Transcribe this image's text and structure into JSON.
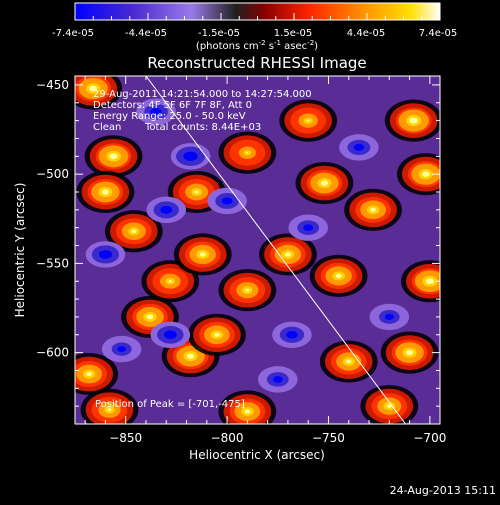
{
  "colorbar": {
    "tick_labels": [
      "-7.4e-05",
      "-4.4e-05",
      "-1.5e-05",
      "1.5e-05",
      "4.4e-05",
      "7.4e-05"
    ],
    "unit_prefix": "(photons cm",
    "unit_exp1": "-2",
    "unit_mid": " s",
    "unit_exp2": "-1",
    "unit_mid2": " asec",
    "unit_exp3": "-2",
    "unit_suffix": ")"
  },
  "chart_data": {
    "type": "heatmap",
    "title": "Reconstructed RHESSI Image",
    "xlabel": "Heliocentric X (arcsec)",
    "ylabel": "Heliocentric Y (arcsec)",
    "xlim": [
      -875,
      -695
    ],
    "ylim": [
      -640,
      -445
    ],
    "xticks": [
      -850,
      -800,
      -750,
      -700
    ],
    "yticks": [
      -450,
      -500,
      -550,
      -600
    ],
    "xtick_labels": [
      "−850",
      "−800",
      "−750",
      "−700"
    ],
    "ytick_labels": [
      "−450",
      "−500",
      "−550",
      "−600"
    ],
    "value_range": [
      -7.4e-05,
      7.4e-05
    ],
    "colormap": [
      "#0000ff",
      "#3a2acc",
      "#6a3ac8",
      "#8e66dc",
      "#000000",
      "#cc1a00",
      "#ff3300",
      "#ff9900",
      "#ffd300",
      "#ffffa0"
    ],
    "limb_line": {
      "x": [
        -840,
        -712
      ],
      "y": [
        -445,
        -640
      ]
    },
    "peak": {
      "x": -701,
      "y": -475
    },
    "blobs": [
      {
        "x": -866,
        "y": -452,
        "v": 7e-05
      },
      {
        "x": -856,
        "y": -490,
        "v": 7.2e-05
      },
      {
        "x": -860,
        "y": -510,
        "v": 6.8e-05
      },
      {
        "x": -846,
        "y": -532,
        "v": 5.5e-05
      },
      {
        "x": -838,
        "y": -580,
        "v": 6.5e-05
      },
      {
        "x": -828,
        "y": -560,
        "v": 4.5e-05
      },
      {
        "x": -818,
        "y": -602,
        "v": 6.8e-05
      },
      {
        "x": -868,
        "y": -612,
        "v": 6e-05
      },
      {
        "x": -815,
        "y": -510,
        "v": 5.2e-05
      },
      {
        "x": -812,
        "y": -545,
        "v": 6.2e-05
      },
      {
        "x": -805,
        "y": -590,
        "v": 6e-05
      },
      {
        "x": -790,
        "y": -565,
        "v": 5e-05
      },
      {
        "x": -770,
        "y": -545,
        "v": 6.2e-05
      },
      {
        "x": -760,
        "y": -470,
        "v": 4.2e-05
      },
      {
        "x": -752,
        "y": -505,
        "v": 6.8e-05
      },
      {
        "x": -745,
        "y": -557,
        "v": 6.2e-05
      },
      {
        "x": -740,
        "y": -605,
        "v": 5.8e-05
      },
      {
        "x": -728,
        "y": -520,
        "v": 6e-05
      },
      {
        "x": -708,
        "y": -470,
        "v": 7.4e-05
      },
      {
        "x": -702,
        "y": -500,
        "v": 7e-05
      },
      {
        "x": -700,
        "y": -560,
        "v": 7.2e-05
      },
      {
        "x": -710,
        "y": -600,
        "v": 6.8e-05
      },
      {
        "x": -720,
        "y": -630,
        "v": 5.5e-05
      },
      {
        "x": -790,
        "y": -633,
        "v": 6e-05
      },
      {
        "x": -858,
        "y": -632,
        "v": 5e-05
      },
      {
        "x": -790,
        "y": -488,
        "v": 3.5e-05
      },
      {
        "x": -818,
        "y": -490,
        "v": -6.5e-05
      },
      {
        "x": -835,
        "y": -465,
        "v": -5e-05
      },
      {
        "x": -860,
        "y": -545,
        "v": -6e-05
      },
      {
        "x": -830,
        "y": -520,
        "v": -5.5e-05
      },
      {
        "x": -828,
        "y": -590,
        "v": -5.8e-05
      },
      {
        "x": -800,
        "y": -515,
        "v": -5e-05
      },
      {
        "x": -760,
        "y": -530,
        "v": -4.5e-05
      },
      {
        "x": -768,
        "y": -590,
        "v": -5.2e-05
      },
      {
        "x": -735,
        "y": -485,
        "v": -4.8e-05
      },
      {
        "x": -720,
        "y": -580,
        "v": -4.2e-05
      },
      {
        "x": -775,
        "y": -615,
        "v": -4.5e-05
      },
      {
        "x": -852,
        "y": -598,
        "v": -4e-05
      }
    ],
    "legend": {
      "line1": "29-Aug-2011 14:21:54.000 to 14:27:54.000",
      "line2": "Detectors: 4F 5F 6F 7F 8F, Att 0",
      "line3": "Energy Range: 25.0 - 50.0 keV",
      "line4": "Clean",
      "line4b": "Total counts: 8.44E+03"
    },
    "peak_label": "Position of Peak = [-701,-475]"
  },
  "footer": {
    "date": "24-Aug-2013 15:11"
  }
}
